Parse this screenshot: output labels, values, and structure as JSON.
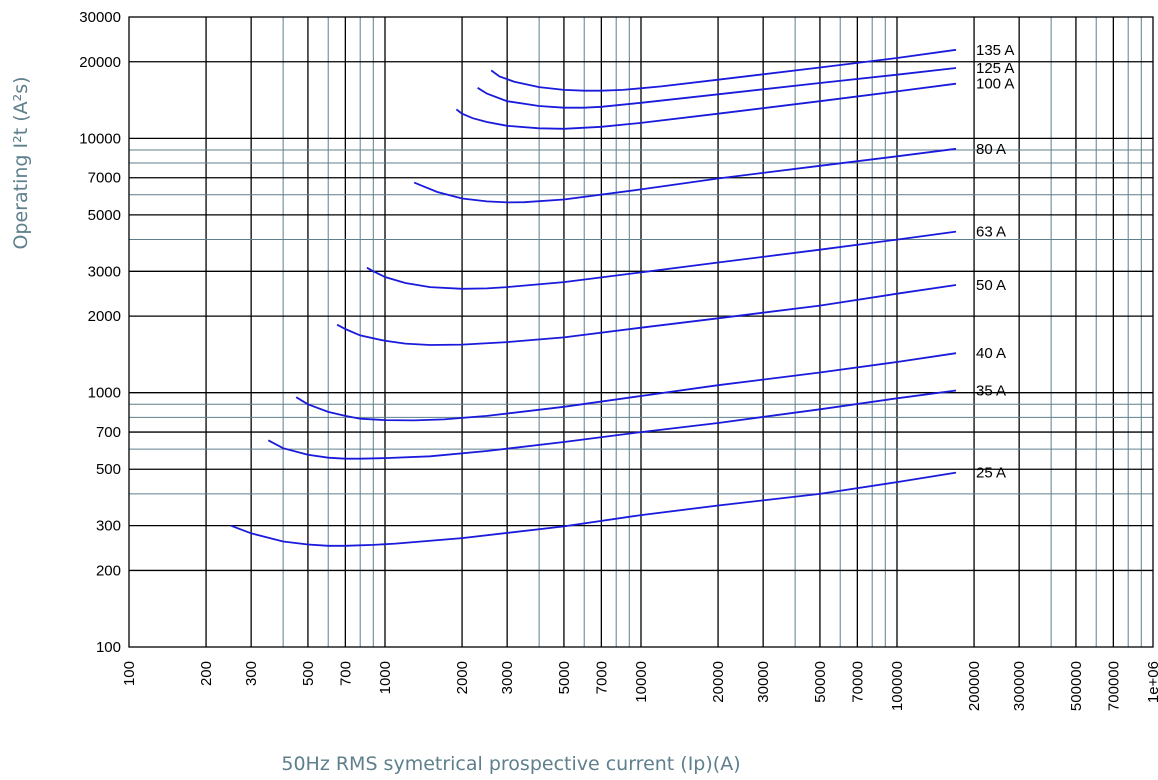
{
  "chart_data": {
    "type": "line",
    "title": "",
    "xlabel": "50Hz RMS symetrical prospective current (Ip)(A)",
    "ylabel": "Operating I²t (A²s)",
    "xscale": "log",
    "yscale": "log",
    "xlim": [
      100,
      1000000
    ],
    "ylim": [
      100,
      30000
    ],
    "grid": true,
    "x_ticks": [
      "100",
      "200",
      "300",
      "500",
      "700",
      "1000",
      "2000",
      "3000",
      "5000",
      "7000",
      "10000",
      "20000",
      "30000",
      "50000",
      "70000",
      "100000",
      "200000",
      "300000",
      "500000",
      "700000",
      "1e+06"
    ],
    "x_tick_values": [
      100,
      200,
      300,
      500,
      700,
      1000,
      2000,
      3000,
      5000,
      7000,
      10000,
      20000,
      30000,
      50000,
      70000,
      100000,
      200000,
      300000,
      500000,
      700000,
      1000000
    ],
    "y_ticks": [
      "100",
      "200",
      "300",
      "500",
      "700",
      "1000",
      "2000",
      "3000",
      "5000",
      "7000",
      "10000",
      "20000",
      "30000"
    ],
    "y_tick_values": [
      100,
      200,
      300,
      500,
      700,
      1000,
      2000,
      3000,
      5000,
      7000,
      10000,
      20000,
      30000
    ],
    "line_color": "#1a1adc",
    "series": [
      {
        "name": "25 A",
        "x": [
          250,
          300,
          400,
          500,
          600,
          700,
          900,
          1100,
          2000,
          5000,
          10000,
          20000,
          50000,
          100000,
          170000
        ],
        "y": [
          300,
          280,
          260,
          253,
          250,
          250,
          252,
          255,
          268,
          298,
          330,
          360,
          400,
          445,
          485
        ]
      },
      {
        "name": "35 A",
        "x": [
          350,
          400,
          500,
          600,
          700,
          800,
          1000,
          1500,
          2500,
          5000,
          10000,
          20000,
          50000,
          100000,
          170000
        ],
        "y": [
          650,
          605,
          570,
          555,
          550,
          550,
          553,
          562,
          590,
          640,
          700,
          760,
          860,
          950,
          1020
        ]
      },
      {
        "name": "40 A",
        "x": [
          450,
          500,
          600,
          700,
          800,
          1000,
          1300,
          1700,
          2500,
          5000,
          10000,
          20000,
          50000,
          100000,
          170000
        ],
        "y": [
          960,
          900,
          840,
          810,
          790,
          780,
          778,
          785,
          810,
          880,
          970,
          1070,
          1200,
          1320,
          1430
        ]
      },
      {
        "name": "50 A",
        "x": [
          650,
          700,
          800,
          1000,
          1200,
          1500,
          2000,
          3000,
          5000,
          10000,
          20000,
          50000,
          100000,
          170000
        ],
        "y": [
          1850,
          1780,
          1680,
          1600,
          1560,
          1540,
          1545,
          1580,
          1650,
          1800,
          1960,
          2200,
          2450,
          2650
        ]
      },
      {
        "name": "63 A",
        "x": [
          850,
          900,
          1000,
          1200,
          1500,
          2000,
          2500,
          3000,
          5000,
          10000,
          20000,
          50000,
          100000,
          170000
        ],
        "y": [
          3100,
          3000,
          2850,
          2700,
          2600,
          2560,
          2570,
          2600,
          2720,
          2970,
          3250,
          3650,
          4000,
          4300
        ]
      },
      {
        "name": "80 A",
        "x": [
          1300,
          1400,
          1600,
          2000,
          2500,
          3000,
          3500,
          5000,
          10000,
          20000,
          50000,
          100000,
          170000
        ],
        "y": [
          6700,
          6500,
          6150,
          5800,
          5650,
          5600,
          5610,
          5750,
          6300,
          6950,
          7800,
          8500,
          9100
        ]
      },
      {
        "name": "100 A",
        "x": [
          1900,
          2000,
          2200,
          2500,
          3000,
          4000,
          5000,
          7000,
          10000,
          20000,
          50000,
          100000,
          170000
        ],
        "y": [
          13000,
          12500,
          12000,
          11600,
          11200,
          10950,
          10900,
          11100,
          11500,
          12500,
          14000,
          15300,
          16400
        ]
      },
      {
        "name": "125 A",
        "x": [
          2300,
          2500,
          3000,
          4000,
          5000,
          6000,
          7000,
          10000,
          20000,
          50000,
          100000,
          170000
        ],
        "y": [
          15800,
          15000,
          14000,
          13400,
          13200,
          13200,
          13300,
          13800,
          14900,
          16500,
          17800,
          18900
        ]
      },
      {
        "name": "135 A",
        "x": [
          2600,
          2800,
          3200,
          4000,
          5000,
          6000,
          7000,
          8500,
          12000,
          20000,
          50000,
          100000,
          170000
        ],
        "y": [
          18500,
          17500,
          16700,
          15900,
          15500,
          15400,
          15400,
          15500,
          16000,
          17000,
          19000,
          20700,
          22300
        ]
      }
    ]
  }
}
